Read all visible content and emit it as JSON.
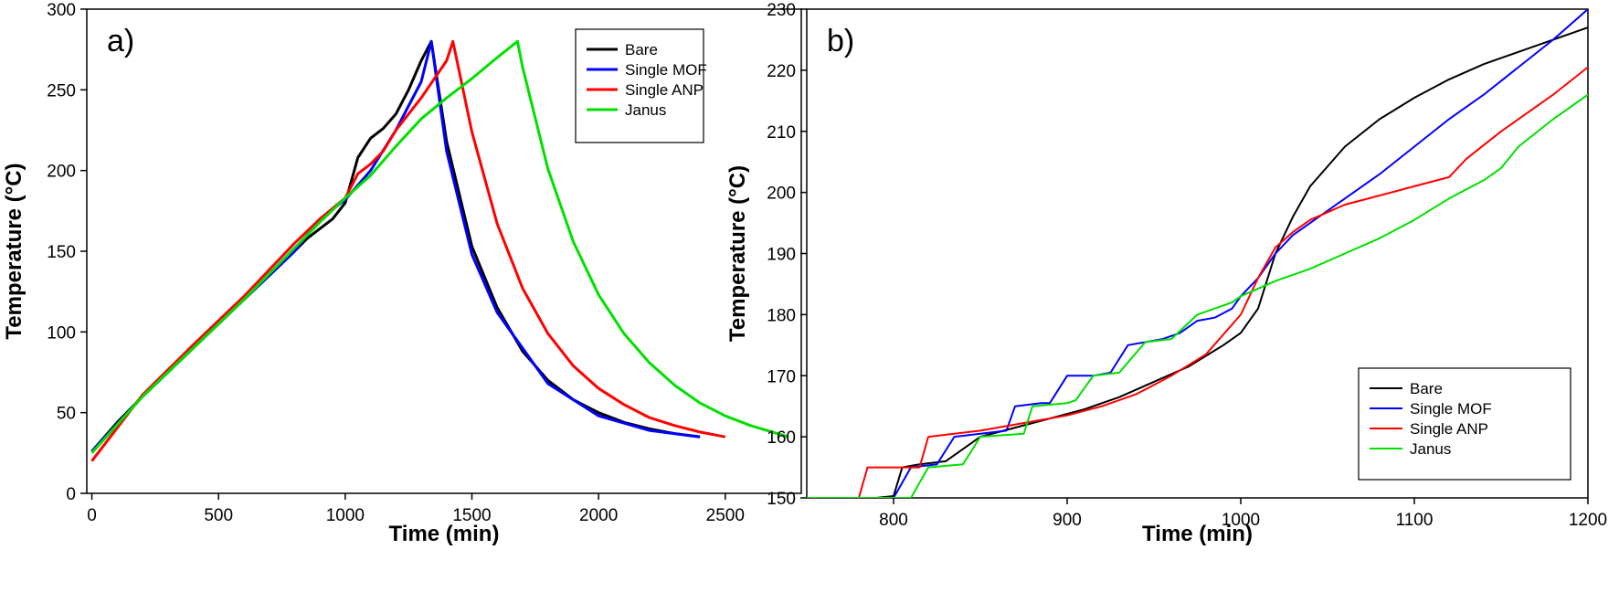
{
  "chart_data": [
    {
      "type": "line",
      "panel_label": "a)",
      "xlabel": "Time (min)",
      "ylabel": "Temperature (°C)",
      "xlim": [
        -20,
        2800
      ],
      "ylim": [
        0,
        300
      ],
      "xticks": [
        0,
        500,
        1000,
        1500,
        2000,
        2500
      ],
      "yticks": [
        0,
        50,
        100,
        150,
        200,
        250,
        300
      ],
      "legend_position": "top-right",
      "series": [
        {
          "name": "Bare",
          "color": "#000000",
          "x": [
            0,
            100,
            200,
            300,
            400,
            500,
            600,
            700,
            800,
            850,
            900,
            950,
            1000,
            1050,
            1100,
            1150,
            1200,
            1250,
            1300,
            1340,
            1400,
            1500,
            1600,
            1700,
            1800,
            1900,
            2000,
            2100,
            2200,
            2300,
            2400
          ],
          "y": [
            26,
            44,
            60,
            75,
            90,
            105,
            120,
            135,
            150,
            158,
            164,
            170,
            180,
            208,
            220,
            226,
            235,
            250,
            268,
            280,
            218,
            153,
            115,
            88,
            70,
            58,
            50,
            44,
            40,
            37,
            35
          ]
        },
        {
          "name": "Single MOF",
          "color": "#0000ff",
          "x": [
            0,
            200,
            400,
            600,
            800,
            900,
            1000,
            1100,
            1200,
            1300,
            1340,
            1400,
            1500,
            1600,
            1800,
            2000,
            2200,
            2400
          ],
          "y": [
            26,
            60,
            90,
            120,
            150,
            170,
            182,
            200,
            225,
            255,
            280,
            212,
            148,
            112,
            68,
            48,
            39,
            35
          ]
        },
        {
          "name": "Single ANP",
          "color": "#ff0000",
          "x": [
            0,
            200,
            400,
            600,
            800,
            900,
            1000,
            1050,
            1100,
            1150,
            1200,
            1300,
            1400,
            1425,
            1500,
            1600,
            1700,
            1800,
            1900,
            2000,
            2100,
            2200,
            2300,
            2400,
            2500
          ],
          "y": [
            20,
            61,
            92,
            122,
            155,
            170,
            183,
            198,
            204,
            212,
            225,
            245,
            268,
            280,
            224,
            167,
            127,
            99,
            79,
            65,
            55,
            47,
            42,
            38,
            35
          ]
        },
        {
          "name": "Janus",
          "color": "#00e000",
          "x": [
            0,
            200,
            400,
            600,
            800,
            900,
            1000,
            1100,
            1200,
            1300,
            1400,
            1500,
            1600,
            1680,
            1700,
            1800,
            1900,
            2000,
            2100,
            2200,
            2300,
            2400,
            2500,
            2600,
            2750
          ],
          "y": [
            25,
            60,
            90,
            120,
            152,
            168,
            183,
            197,
            215,
            232,
            245,
            257,
            270,
            280,
            264,
            201,
            156,
            123,
            99,
            81,
            67,
            56,
            48,
            42,
            35
          ]
        }
      ]
    },
    {
      "type": "line",
      "panel_label": "b)",
      "xlabel": "Time (min)",
      "ylabel": "Temperature (°C)",
      "xlim": [
        750,
        1200
      ],
      "ylim": [
        150,
        230
      ],
      "xticks": [
        800,
        900,
        1000,
        1100,
        1200
      ],
      "yticks": [
        150,
        160,
        170,
        180,
        190,
        200,
        210,
        220,
        230
      ],
      "legend_position": "bottom-right",
      "series": [
        {
          "name": "Bare",
          "color": "#000000",
          "x": [
            750,
            790,
            800,
            805,
            815,
            830,
            850,
            870,
            890,
            910,
            930,
            950,
            970,
            990,
            1000,
            1010,
            1020,
            1030,
            1040,
            1060,
            1080,
            1100,
            1120,
            1140,
            1160,
            1180,
            1200
          ],
          "y": [
            150,
            150,
            150.3,
            155,
            155.5,
            156,
            160,
            161.5,
            163,
            164.5,
            166.5,
            169,
            171.5,
            175,
            177,
            181,
            190,
            196,
            201,
            207.5,
            212,
            215.5,
            218.5,
            221,
            223,
            225,
            227
          ]
        },
        {
          "name": "Single MOF",
          "color": "#0000ff",
          "x": [
            750,
            800,
            810,
            825,
            835,
            850,
            865,
            870,
            885,
            890,
            900,
            915,
            925,
            935,
            955,
            965,
            975,
            985,
            995,
            1000,
            1010,
            1020,
            1030,
            1040,
            1050,
            1060,
            1080,
            1100,
            1120,
            1140,
            1160,
            1180,
            1200
          ],
          "y": [
            150,
            150,
            155,
            155.5,
            160,
            160.5,
            161,
            165,
            165.5,
            165.5,
            170,
            170,
            170.5,
            175,
            176,
            177,
            179,
            179.5,
            181,
            183,
            186,
            190,
            193,
            195,
            197,
            199,
            203,
            207.5,
            212,
            216,
            220.5,
            225,
            230
          ]
        },
        {
          "name": "Single ANP",
          "color": "#ff0000",
          "x": [
            750,
            780,
            785,
            815,
            820,
            850,
            880,
            900,
            920,
            940,
            960,
            980,
            1000,
            1010,
            1020,
            1030,
            1040,
            1060,
            1080,
            1100,
            1120,
            1130,
            1150,
            1180,
            1200
          ],
          "y": [
            150,
            150,
            155,
            155,
            160,
            161,
            162.5,
            163.5,
            165,
            167,
            170,
            173.5,
            180,
            186,
            191,
            193.5,
            195.5,
            198,
            199.5,
            201,
            202.5,
            205.5,
            210,
            216,
            220.5
          ]
        },
        {
          "name": "Janus",
          "color": "#00e000",
          "x": [
            750,
            810,
            820,
            840,
            850,
            875,
            880,
            900,
            905,
            915,
            930,
            945,
            960,
            975,
            985,
            995,
            1000,
            1020,
            1040,
            1060,
            1080,
            1100,
            1120,
            1140,
            1150,
            1160,
            1180,
            1200
          ],
          "y": [
            150,
            150,
            155,
            155.5,
            160,
            160.5,
            165,
            165.5,
            166,
            170,
            170.5,
            175.5,
            176,
            180,
            181,
            182,
            183,
            185.5,
            187.5,
            190,
            192.5,
            195.5,
            199,
            202,
            204,
            207.5,
            212,
            216
          ]
        }
      ]
    }
  ]
}
